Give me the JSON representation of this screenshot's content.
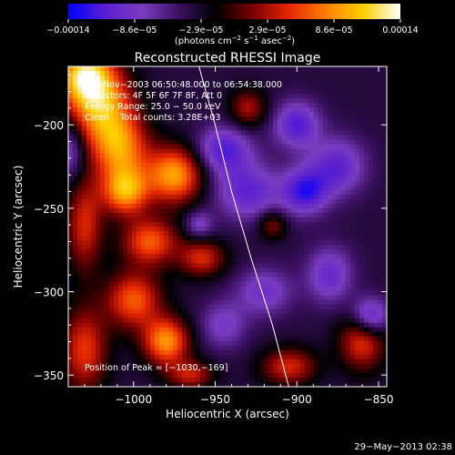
{
  "chart_data": {
    "type": "heatmap",
    "title": "Reconstructed RHESSI Image",
    "xlabel": "Heliocentric X (arcsec)",
    "ylabel": "Heliocentric Y (arcsec)",
    "xlim": [
      -1040,
      -845
    ],
    "ylim": [
      -357,
      -165
    ],
    "x_ticks": [
      -1000,
      -950,
      -900,
      -850
    ],
    "x_tick_labels": [
      "−1000",
      "−950",
      "−900",
      "−850"
    ],
    "y_ticks": [
      -200,
      -250,
      -300,
      -350
    ],
    "y_tick_labels": [
      "−200",
      "−250",
      "−300",
      "−350"
    ],
    "colorbar": {
      "tick_labels": [
        "−0.00014",
        "−8.6e−05",
        "−2.9e−05",
        "2.9e−05",
        "8.6e−05",
        "0.00014"
      ],
      "range": [
        -0.00014,
        0.00014
      ],
      "unit_main": "(photons cm",
      "unit_exp1": "−2",
      "unit_mid": " s",
      "unit_exp2": "−1",
      "unit_end": " asec",
      "unit_exp3": "−2",
      "unit_close": ")"
    },
    "annotations": [
      "18−Nov−2003 06:50:48.000 to 06:54:38.000",
      "Detectors: 4F 5F 6F 7F 8F, Att 0",
      "Energy Range: 25.0 − 50.0 keV",
      "Clean    Total counts: 3.28E+03"
    ],
    "peak_label": "Position of Peak = [−1030,−169]",
    "limb_curve": [
      [
        -960,
        -165
      ],
      [
        -950,
        -200
      ],
      [
        -940,
        -240
      ],
      [
        -928,
        -280
      ],
      [
        -915,
        -320
      ],
      [
        -905,
        -357
      ]
    ],
    "blobs": [
      {
        "x": -1030,
        "y": -170,
        "sx": 12,
        "sy": 12,
        "a": 1.0
      },
      {
        "x": -1020,
        "y": -190,
        "sx": 14,
        "sy": 16,
        "a": 0.85
      },
      {
        "x": -1008,
        "y": -215,
        "sx": 12,
        "sy": 14,
        "a": 0.75
      },
      {
        "x": -1005,
        "y": -240,
        "sx": 10,
        "sy": 10,
        "a": 0.85
      },
      {
        "x": -975,
        "y": -230,
        "sx": 12,
        "sy": 12,
        "a": 0.9
      },
      {
        "x": -990,
        "y": -270,
        "sx": 12,
        "sy": 10,
        "a": 0.7
      },
      {
        "x": -1000,
        "y": -305,
        "sx": 12,
        "sy": 12,
        "a": 0.7
      },
      {
        "x": -980,
        "y": -330,
        "sx": 10,
        "sy": 10,
        "a": 0.85
      },
      {
        "x": -1030,
        "y": -335,
        "sx": 10,
        "sy": 18,
        "a": 0.6
      },
      {
        "x": -1030,
        "y": -260,
        "sx": 8,
        "sy": 20,
        "a": 0.55
      },
      {
        "x": -958,
        "y": -280,
        "sx": 10,
        "sy": 8,
        "a": 0.55
      },
      {
        "x": -930,
        "y": -190,
        "sx": 8,
        "sy": 8,
        "a": 0.45
      },
      {
        "x": -915,
        "y": -260,
        "sx": 6,
        "sy": 6,
        "a": 0.4
      },
      {
        "x": -905,
        "y": -345,
        "sx": 12,
        "sy": 8,
        "a": 0.55
      },
      {
        "x": -860,
        "y": -330,
        "sx": 10,
        "sy": 12,
        "a": 0.6
      },
      {
        "x": -965,
        "y": -350,
        "sx": 10,
        "sy": 6,
        "a": 0.5
      },
      {
        "x": -945,
        "y": -215,
        "sx": 12,
        "sy": 10,
        "a": -0.55
      },
      {
        "x": -930,
        "y": -240,
        "sx": 14,
        "sy": 12,
        "a": -0.5
      },
      {
        "x": -900,
        "y": -200,
        "sx": 10,
        "sy": 10,
        "a": -0.55
      },
      {
        "x": -875,
        "y": -225,
        "sx": 12,
        "sy": 12,
        "a": -0.5
      },
      {
        "x": -895,
        "y": -240,
        "sx": 10,
        "sy": 10,
        "a": -0.6
      },
      {
        "x": -880,
        "y": -290,
        "sx": 10,
        "sy": 12,
        "a": -0.45
      },
      {
        "x": -920,
        "y": -300,
        "sx": 12,
        "sy": 10,
        "a": -0.4
      },
      {
        "x": -855,
        "y": -315,
        "sx": 8,
        "sy": 8,
        "a": -0.6
      },
      {
        "x": -945,
        "y": -320,
        "sx": 10,
        "sy": 10,
        "a": -0.35
      },
      {
        "x": -1038,
        "y": -215,
        "sx": 6,
        "sy": 12,
        "a": -0.4
      },
      {
        "x": -960,
        "y": -260,
        "sx": 6,
        "sy": 6,
        "a": -0.35
      }
    ],
    "background_level": -0.25,
    "colormap": [
      "#0000ff",
      "#5a1fd0",
      "#7a3cc0",
      "#3a1060",
      "#000000",
      "#7a0000",
      "#e62800",
      "#ff8000",
      "#ffd000",
      "#ffffff"
    ]
  },
  "footer": {
    "timestamp": "29−May−2013 02:38"
  }
}
